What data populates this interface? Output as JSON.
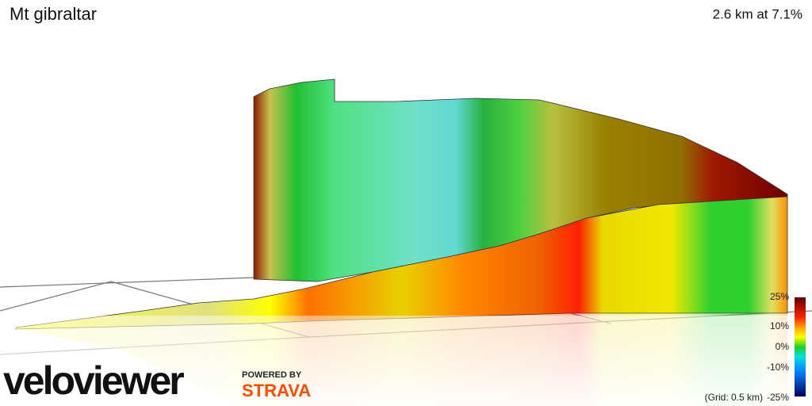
{
  "header": {
    "title": "Mt gibraltar",
    "stats": "2.6 km at 7.1%"
  },
  "legend": {
    "labels": [
      "25%",
      "10%",
      "0%",
      "-10%",
      "-25%"
    ],
    "grid_note": "(Grid: 0.5 km)"
  },
  "branding": {
    "logo": "veloviewer",
    "powered_by": "POWERED BY",
    "partner": "STRAVA"
  }
}
